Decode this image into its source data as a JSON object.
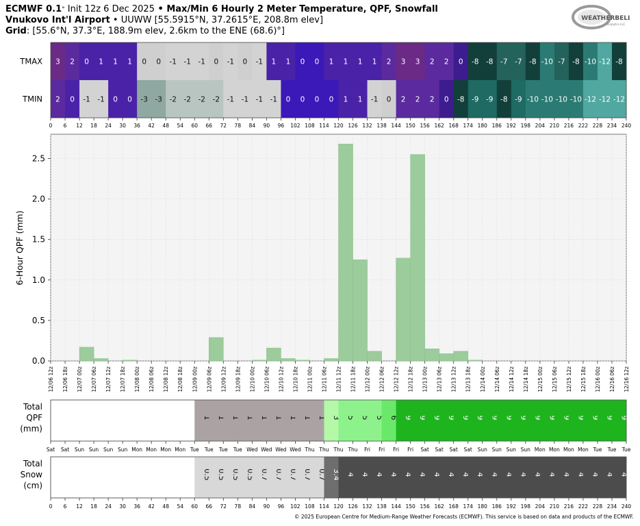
{
  "header": {
    "line1_model": "ECMWF 0.1",
    "line1_deg": "°",
    "line1_init": " Init 12z 6 Dec 2025",
    "line1_bullet": " • ",
    "line1_title": "Max/Min 6 Hourly 2 Meter Temperature, QPF, Snowfall",
    "line2_station": "Vnukovo Int'l Airport",
    "line2_rest": " • UUWW [55.5915°N, 37.2615°E, 208.8m elev]",
    "line3_grid": "Grid",
    "line3_rest": ": [55.6°N, 37.3°E, 188.9m elev, 2.6km to the ENE (68.6)°]"
  },
  "logo": {
    "text": "WEATHERBELL",
    "subtext": "Analytics LLC"
  },
  "copyright": "© 2025 European Centre for Medium-Range Weather Forecasts (ECMWF). This service is based on data and products of the ECMWF.",
  "chart_data": [
    {
      "type": "heatmap",
      "rows": [
        "TMAX",
        "TMIN"
      ],
      "x_ticks": [
        0,
        6,
        12,
        18,
        24,
        30,
        36,
        42,
        48,
        54,
        60,
        66,
        72,
        78,
        84,
        90,
        96,
        102,
        108,
        114,
        120,
        126,
        132,
        138,
        144,
        150,
        156,
        162,
        168,
        174,
        180,
        186,
        192,
        198,
        204,
        210,
        216,
        222,
        228,
        234,
        240
      ],
      "tmax": [
        3,
        2,
        0,
        1,
        1,
        1,
        0,
        0,
        -1,
        -1,
        -1,
        0,
        -1,
        0,
        -1,
        1,
        1,
        0,
        0,
        1,
        1,
        1,
        1,
        2,
        3,
        3,
        2,
        2,
        0,
        -8,
        -8,
        -7,
        -7,
        -8,
        -10,
        -7,
        -8,
        -10,
        -12,
        -8
      ],
      "tmin": [
        2,
        0,
        -1,
        -1,
        0,
        0,
        -3,
        -3,
        -2,
        -2,
        -2,
        -2,
        -1,
        -1,
        -1,
        -1,
        0,
        0,
        0,
        0,
        1,
        1,
        -1,
        0,
        2,
        2,
        2,
        0,
        -8,
        -9,
        -9,
        -8,
        -9,
        -10,
        -10,
        -10,
        -10,
        -12,
        -12,
        -12
      ]
    },
    {
      "type": "bar",
      "ylabel": "6-Hour QPF (mm)",
      "ylim": [
        0,
        2.8
      ],
      "y_ticks": [
        "0.0",
        "0.5",
        "1.0",
        "1.5",
        "2.0",
        "2.5"
      ],
      "grid": true,
      "categories": [
        "12/06 12z",
        "12/06 18z",
        "12/07 00z",
        "12/07 06z",
        "12/07 12z",
        "12/07 18z",
        "12/08 00z",
        "12/08 06z",
        "12/08 12z",
        "12/08 18z",
        "12/09 00z",
        "12/09 06z",
        "12/09 12z",
        "12/09 18z",
        "12/10 00z",
        "12/10 06z",
        "12/10 12z",
        "12/10 18z",
        "12/11 00z",
        "12/11 06z",
        "12/11 12z",
        "12/11 18z",
        "12/12 00z",
        "12/12 06z",
        "12/12 12z",
        "12/12 18z",
        "12/13 00z",
        "12/13 06z",
        "12/13 12z",
        "12/13 18z",
        "12/14 00z",
        "12/14 06z",
        "12/14 12z",
        "12/14 18z",
        "12/15 00z",
        "12/15 06z",
        "12/15 12z",
        "12/15 18z",
        "12/16 00z",
        "12/16 06z",
        "12/16 12z"
      ],
      "values": [
        0,
        0,
        0.17,
        0.03,
        0,
        0.01,
        0,
        0,
        0,
        0,
        0,
        0.29,
        0,
        0,
        0.01,
        0.16,
        0.03,
        0.01,
        0,
        0.03,
        2.68,
        1.25,
        0.12,
        0,
        1.27,
        2.55,
        0.15,
        0.09,
        0.12,
        0.01,
        0,
        0,
        0,
        0,
        0,
        0,
        0,
        0,
        0,
        0,
        0
      ]
    },
    {
      "type": "table",
      "label_lines": [
        "Total",
        "QPF",
        "(mm)"
      ],
      "values": [
        null,
        null,
        null,
        null,
        null,
        null,
        null,
        null,
        null,
        null,
        1,
        1,
        1,
        1,
        1,
        1,
        1,
        1,
        1,
        3,
        5,
        5,
        5,
        6,
        9,
        9,
        9,
        9,
        9,
        9,
        9,
        9,
        9,
        9,
        9,
        9,
        9,
        9,
        9,
        9
      ],
      "colors": {
        "1": "#aba3a3",
        "3": "#b4f8a8",
        "5": "#8ef28c",
        "6": "#6ae86a",
        "9": "#1eb41e"
      },
      "day_labels": [
        "Sat",
        "Sat",
        "Sun",
        "Sun",
        "Sun",
        "Sun",
        "Mon",
        "Mon",
        "Mon",
        "Mon",
        "Tue",
        "Tue",
        "Tue",
        "Tue",
        "Wed",
        "Wed",
        "Wed",
        "Wed",
        "Thu",
        "Thu",
        "Thu",
        "Thu",
        "Fri",
        "Fri",
        "Fri",
        "Fri",
        "Sat",
        "Sat",
        "Sat",
        "Sat",
        "Sun",
        "Sun",
        "Sun",
        "Sun",
        "Mon",
        "Mon",
        "Mon",
        "Mon",
        "Tue",
        "Tue",
        "Tue"
      ]
    },
    {
      "type": "table",
      "label_lines": [
        "Total",
        "Snow",
        "(cm)"
      ],
      "values": [
        null,
        null,
        null,
        null,
        null,
        null,
        null,
        null,
        null,
        null,
        0.5,
        0.5,
        0.5,
        0.5,
        0.7,
        0.7,
        0.7,
        0.7,
        0.7,
        3.4,
        4,
        4,
        4,
        4,
        4,
        4,
        4,
        4,
        4,
        4,
        4,
        4,
        4,
        4,
        4,
        4,
        4,
        4,
        4,
        4
      ],
      "colors": {
        "0.5": "#d8d8d8",
        "0.7": "#d8d8d8",
        "3.4": "#6e6e6e",
        "4": "#4c4c4c"
      },
      "x_ticks": [
        0,
        6,
        12,
        18,
        24,
        30,
        36,
        42,
        48,
        54,
        60,
        66,
        72,
        78,
        84,
        90,
        96,
        102,
        108,
        114,
        120,
        126,
        132,
        138,
        144,
        150,
        156,
        162,
        168,
        174,
        180,
        186,
        192,
        198,
        204,
        210,
        216,
        222,
        228,
        234,
        240
      ]
    }
  ]
}
